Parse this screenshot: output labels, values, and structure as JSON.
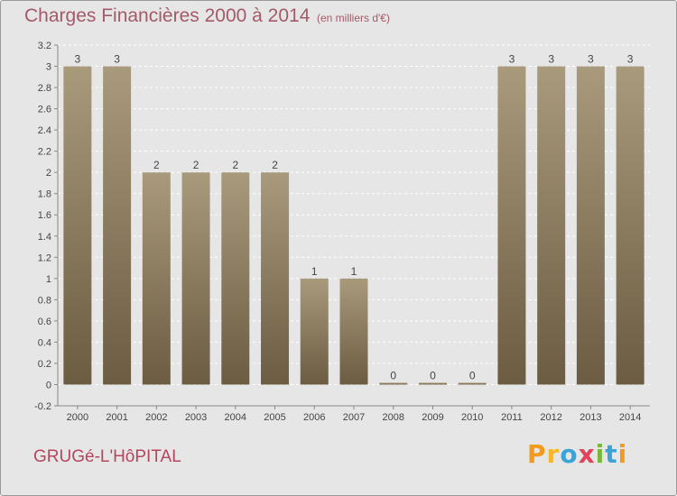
{
  "header": {
    "title": "Charges Financières 2000 à 2014",
    "subtitle": "(en milliers d'€)"
  },
  "footer": {
    "commune": "GRUGé-L'HôPITAL",
    "brand": "Proxiti"
  },
  "colors": {
    "bar_top": "#a99a7c",
    "bar_bottom": "#6b5c42",
    "title": "#a35a6a"
  },
  "chart_data": {
    "type": "bar",
    "title": "Charges Financières 2000 à 2014",
    "subtitle": "(en milliers d'€)",
    "xlabel": "",
    "ylabel": "",
    "categories": [
      "2000",
      "2001",
      "2002",
      "2003",
      "2004",
      "2005",
      "2006",
      "2007",
      "2008",
      "2009",
      "2010",
      "2011",
      "2012",
      "2013",
      "2014"
    ],
    "values": [
      3,
      3,
      2,
      2,
      2,
      2,
      1,
      1,
      0,
      0,
      0,
      3,
      3,
      3,
      3
    ],
    "data_labels": [
      "3",
      "3",
      "2",
      "2",
      "2",
      "2",
      "1",
      "1",
      "0",
      "0",
      "0",
      "3",
      "3",
      "3",
      "3"
    ],
    "yticks": [
      "-0.2",
      "0",
      "0.2",
      "0.4",
      "0.6",
      "0.8",
      "1",
      "1.2",
      "1.4",
      "1.6",
      "1.8",
      "2",
      "2.2",
      "2.4",
      "2.6",
      "2.8",
      "3",
      "3.2"
    ],
    "ylim": [
      -0.2,
      3.2
    ],
    "grid": true,
    "legend": "none"
  }
}
